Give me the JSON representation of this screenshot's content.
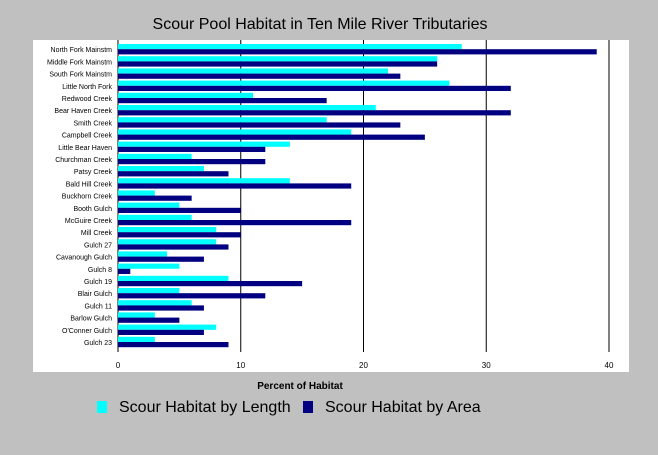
{
  "chart_data": {
    "type": "bar",
    "orientation": "horizontal",
    "title": "Scour Pool Habitat in Ten Mile River Tributaries",
    "xlabel": "Percent of Habitat",
    "ylabel": "",
    "xlim": [
      0,
      40
    ],
    "xticks": [
      "0",
      "10",
      "20",
      "30",
      "40"
    ],
    "grid": "vertical lines at major ticks",
    "legend_position": "bottom",
    "categories": [
      "North Fork Mainstm",
      "Middle Fork Mainstm",
      "South Fork Mainstm",
      "Little North Fork",
      "Redwood Creek",
      "Bear Haven Creek",
      "Smith Creek",
      "Campbell Creek",
      "Little Bear Haven",
      "Churchman Creek",
      "Patsy Creek",
      "Bald Hill Creek",
      "Buckhorn Creek",
      "Booth Gulch",
      "McGuire Creek",
      "Mill Creek",
      "Gulch 27",
      "Cavanough Gulch",
      "Gulch 8",
      "Gulch 19",
      "Blair Gulch",
      "Gulch 11",
      "Barlow Gulch",
      "O'Conner Gulch",
      "Gulch 23"
    ],
    "series": [
      {
        "name": "Scour Habitat by Length",
        "color": "#00ffff",
        "values": [
          28,
          26,
          22,
          27,
          11,
          21,
          17,
          19,
          14,
          6,
          7,
          14,
          3,
          5,
          6,
          8,
          8,
          4,
          5,
          9,
          5,
          6,
          3,
          8,
          3
        ]
      },
      {
        "name": "Scour Habitat by Area",
        "color": "#000080",
        "values": [
          39,
          26,
          23,
          32,
          17,
          32,
          23,
          25,
          12,
          12,
          9,
          19,
          6,
          10,
          19,
          10,
          9,
          7,
          1,
          15,
          12,
          7,
          5,
          7,
          9
        ]
      }
    ]
  },
  "colors": {
    "background": "#c0c0c0",
    "plot_background": "#ffffff",
    "gridline": "#000000"
  },
  "legend": {
    "items": [
      {
        "label": "Scour Habitat by Length",
        "color": "#00ffff"
      },
      {
        "label": "Scour Habitat by Area",
        "color": "#000080"
      }
    ]
  }
}
